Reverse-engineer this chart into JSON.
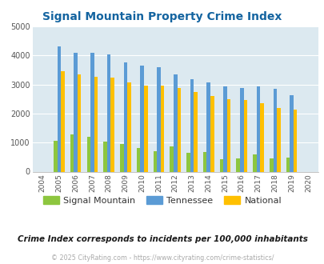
{
  "title": "Signal Mountain Property Crime Index",
  "years": [
    2004,
    2005,
    2006,
    2007,
    2008,
    2009,
    2010,
    2011,
    2012,
    2013,
    2014,
    2015,
    2016,
    2017,
    2018,
    2019,
    2020
  ],
  "signal_mountain": [
    0,
    1060,
    1280,
    1200,
    1040,
    940,
    820,
    690,
    880,
    650,
    680,
    420,
    450,
    600,
    450,
    490,
    0
  ],
  "tennessee": [
    0,
    4300,
    4100,
    4080,
    4040,
    3760,
    3660,
    3600,
    3360,
    3180,
    3060,
    2940,
    2890,
    2940,
    2840,
    2620,
    0
  ],
  "national": [
    0,
    3450,
    3350,
    3260,
    3230,
    3060,
    2960,
    2950,
    2890,
    2730,
    2600,
    2490,
    2460,
    2360,
    2200,
    2130,
    0
  ],
  "colors": {
    "signal_mountain": "#8dc63f",
    "tennessee": "#5b9bd5",
    "national": "#ffc000"
  },
  "bg_color": "#dce9f0",
  "title_color": "#1464a0",
  "ylim": [
    0,
    5000
  ],
  "yticks": [
    0,
    1000,
    2000,
    3000,
    4000,
    5000
  ],
  "subtitle": "Crime Index corresponds to incidents per 100,000 inhabitants",
  "footnote": "© 2025 CityRating.com - https://www.cityrating.com/crime-statistics/",
  "legend_labels": [
    "Signal Mountain",
    "Tennessee",
    "National"
  ]
}
